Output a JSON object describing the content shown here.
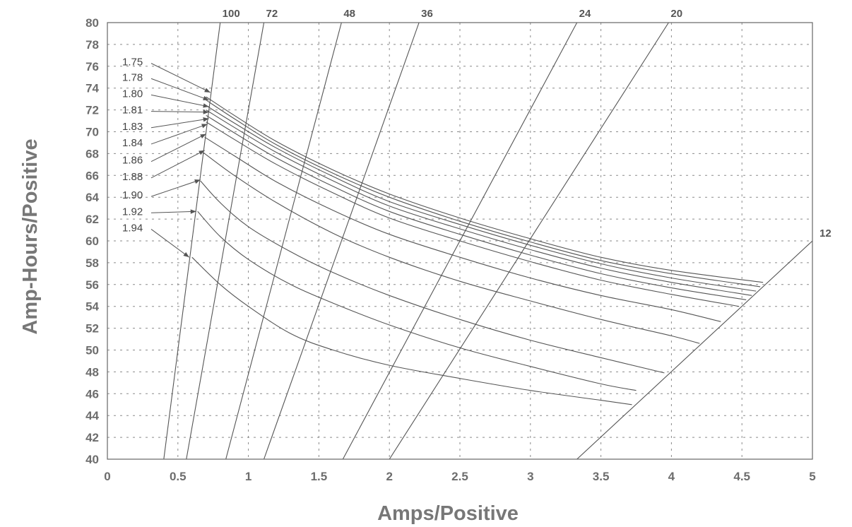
{
  "chart_data": {
    "type": "line",
    "xlabel": "Amps/Positive",
    "ylabel": "Amp-Hours/Positive",
    "xlim": [
      0,
      5
    ],
    "ylim": [
      40,
      80
    ],
    "x_ticks": [
      0,
      0.5,
      1,
      1.5,
      2,
      2.5,
      3,
      3.5,
      4,
      4.5,
      5
    ],
    "x_tick_labels": [
      "0",
      "0.5",
      "1",
      "1.5",
      "2",
      "2.5",
      "3",
      "3.5",
      "4",
      "4.5",
      "5"
    ],
    "y_ticks": [
      40,
      42,
      44,
      46,
      48,
      50,
      52,
      54,
      56,
      58,
      60,
      62,
      64,
      66,
      68,
      70,
      72,
      74,
      76,
      78,
      80
    ],
    "y_tick_labels": [
      "40",
      "42",
      "44",
      "46",
      "48",
      "50",
      "52",
      "54",
      "56",
      "58",
      "60",
      "62",
      "64",
      "66",
      "68",
      "70",
      "72",
      "74",
      "76",
      "78",
      "80"
    ],
    "grid": true,
    "series": [
      {
        "name": "1.75",
        "x": [
          0.7,
          0.9,
          1.2,
          1.6,
          2.0,
          2.5,
          3.0,
          3.5,
          4.0,
          4.65
        ],
        "y": [
          73.2,
          71.5,
          69.1,
          66.5,
          64.3,
          62.1,
          60.2,
          58.5,
          57.3,
          56.2
        ]
      },
      {
        "name": "1.78",
        "x": [
          0.7,
          0.9,
          1.2,
          1.6,
          2.0,
          2.5,
          3.0,
          3.5,
          4.0,
          4.63
        ],
        "y": [
          72.9,
          71.2,
          68.8,
          66.2,
          64.0,
          61.8,
          59.9,
          58.2,
          57.0,
          55.8
        ]
      },
      {
        "name": "1.80",
        "x": [
          0.7,
          0.9,
          1.2,
          1.6,
          2.0,
          2.5,
          3.0,
          3.5,
          4.0,
          4.6
        ],
        "y": [
          72.4,
          70.8,
          68.5,
          65.9,
          63.6,
          61.5,
          59.6,
          57.9,
          56.6,
          55.4
        ]
      },
      {
        "name": "1.81",
        "x": [
          0.7,
          0.9,
          1.2,
          1.6,
          2.0,
          2.5,
          3.0,
          3.5,
          4.0,
          4.57
        ],
        "y": [
          72.0,
          70.4,
          68.1,
          65.5,
          63.2,
          61.1,
          59.2,
          57.5,
          56.2,
          55.0
        ]
      },
      {
        "name": "1.83",
        "x": [
          0.7,
          0.9,
          1.2,
          1.6,
          2.0,
          2.5,
          3.0,
          3.5,
          4.0,
          4.53
        ],
        "y": [
          71.5,
          69.9,
          67.6,
          65.0,
          62.7,
          60.6,
          58.7,
          57.0,
          55.7,
          54.6
        ]
      },
      {
        "name": "1.84",
        "x": [
          0.7,
          0.9,
          1.2,
          1.6,
          2.0,
          2.5,
          3.0,
          3.5,
          4.0,
          4.48
        ],
        "y": [
          70.9,
          69.3,
          67.0,
          64.4,
          62.1,
          60.0,
          58.1,
          56.4,
          55.1,
          54.0
        ]
      },
      {
        "name": "1.86",
        "x": [
          0.69,
          0.9,
          1.2,
          1.6,
          2.0,
          2.5,
          3.0,
          3.5,
          4.0,
          4.35
        ],
        "y": [
          69.5,
          67.8,
          65.4,
          62.8,
          60.6,
          58.5,
          56.6,
          55.0,
          53.7,
          52.6
        ]
      },
      {
        "name": "1.88",
        "x": [
          0.68,
          0.9,
          1.2,
          1.6,
          2.0,
          2.5,
          3.0,
          3.5,
          4.0,
          4.2
        ],
        "y": [
          68.1,
          66.0,
          63.5,
          60.7,
          58.5,
          56.3,
          54.5,
          52.8,
          51.3,
          50.6
        ]
      },
      {
        "name": "1.90",
        "x": [
          0.66,
          0.8,
          1.0,
          1.3,
          1.6,
          2.0,
          2.5,
          3.0,
          3.5,
          3.95
        ],
        "y": [
          65.5,
          63.5,
          61.3,
          59.0,
          57.1,
          55.0,
          52.8,
          50.9,
          49.3,
          47.9
        ]
      },
      {
        "name": "1.92",
        "x": [
          0.64,
          0.8,
          1.0,
          1.3,
          1.6,
          2.0,
          2.5,
          3.0,
          3.5,
          3.75
        ],
        "y": [
          62.7,
          60.4,
          58.3,
          56.0,
          54.3,
          52.3,
          50.2,
          48.5,
          46.9,
          46.3
        ]
      },
      {
        "name": "1.94",
        "x": [
          0.6,
          0.8,
          1.0,
          1.3,
          1.6,
          2.0,
          2.5,
          3.0,
          3.5,
          3.72
        ],
        "y": [
          58.5,
          56.0,
          54.0,
          51.5,
          50.0,
          48.6,
          47.4,
          46.3,
          45.4,
          45.0
        ]
      }
    ],
    "hour_lines": [
      {
        "label": "100",
        "x": [
          0.4,
          0.8
        ],
        "y": [
          40,
          80
        ]
      },
      {
        "label": "72",
        "x": [
          0.56,
          1.11
        ],
        "y": [
          40,
          80
        ]
      },
      {
        "label": "48",
        "x": [
          0.84,
          1.66
        ],
        "y": [
          40,
          80
        ]
      },
      {
        "label": "36",
        "x": [
          1.11,
          2.21
        ],
        "y": [
          40,
          80
        ]
      },
      {
        "label": "24",
        "x": [
          1.67,
          3.33
        ],
        "y": [
          40,
          80
        ]
      },
      {
        "label": "20",
        "x": [
          2.0,
          3.98
        ],
        "y": [
          40,
          80
        ]
      },
      {
        "label": "12",
        "x": [
          3.33,
          5.0
        ],
        "y": [
          40,
          60
        ]
      }
    ],
    "annotations": [
      {
        "text": "1.75",
        "label_y": 76.4,
        "arrow_to": [
          0.73,
          73.6
        ]
      },
      {
        "text": "1.78",
        "label_y": 75.0,
        "arrow_to": [
          0.72,
          72.9
        ]
      },
      {
        "text": "1.80",
        "label_y": 73.5,
        "arrow_to": [
          0.72,
          72.3
        ]
      },
      {
        "text": "1.81",
        "label_y": 72.0,
        "arrow_to": [
          0.72,
          71.8
        ]
      },
      {
        "text": "1.83",
        "label_y": 70.5,
        "arrow_to": [
          0.72,
          71.2
        ]
      },
      {
        "text": "1.84",
        "label_y": 69.0,
        "arrow_to": [
          0.71,
          70.7
        ]
      },
      {
        "text": "1.86",
        "label_y": 67.4,
        "arrow_to": [
          0.7,
          69.8
        ]
      },
      {
        "text": "1.88",
        "label_y": 65.9,
        "arrow_to": [
          0.69,
          68.3
        ]
      },
      {
        "text": "1.90",
        "label_y": 64.2,
        "arrow_to": [
          0.66,
          65.6
        ]
      },
      {
        "text": "1.92",
        "label_y": 62.7,
        "arrow_to": [
          0.63,
          62.7
        ]
      },
      {
        "text": "1.94",
        "label_y": 61.2,
        "arrow_to": [
          0.58,
          58.5
        ]
      }
    ]
  }
}
